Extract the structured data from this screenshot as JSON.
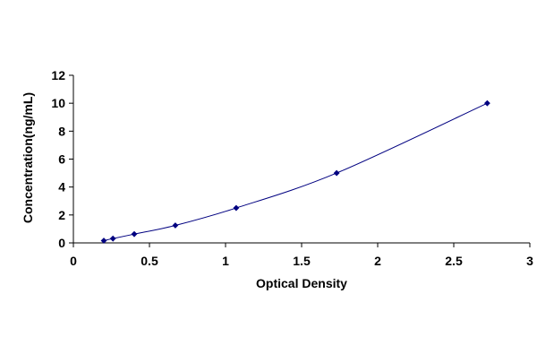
{
  "chart_data": {
    "type": "scatter",
    "title": "",
    "xlabel": "Optical Density",
    "ylabel": "Concentration(ng/mL)",
    "xlim": [
      0,
      3
    ],
    "ylim": [
      0,
      12
    ],
    "x_ticks": [
      "0",
      "0.5",
      "1",
      "1.5",
      "2",
      "2.5",
      "3"
    ],
    "y_ticks": [
      "0",
      "2",
      "4",
      "6",
      "8",
      "10",
      "12"
    ],
    "grid": false,
    "legend": "none",
    "series": [
      {
        "x": [
          0.2,
          0.26,
          0.4,
          0.67,
          1.07,
          1.73,
          2.72
        ],
        "y": [
          0.16,
          0.31,
          0.63,
          1.25,
          2.5,
          5,
          10
        ],
        "marker": "diamond",
        "line": "smooth",
        "color": "#000080"
      }
    ]
  }
}
